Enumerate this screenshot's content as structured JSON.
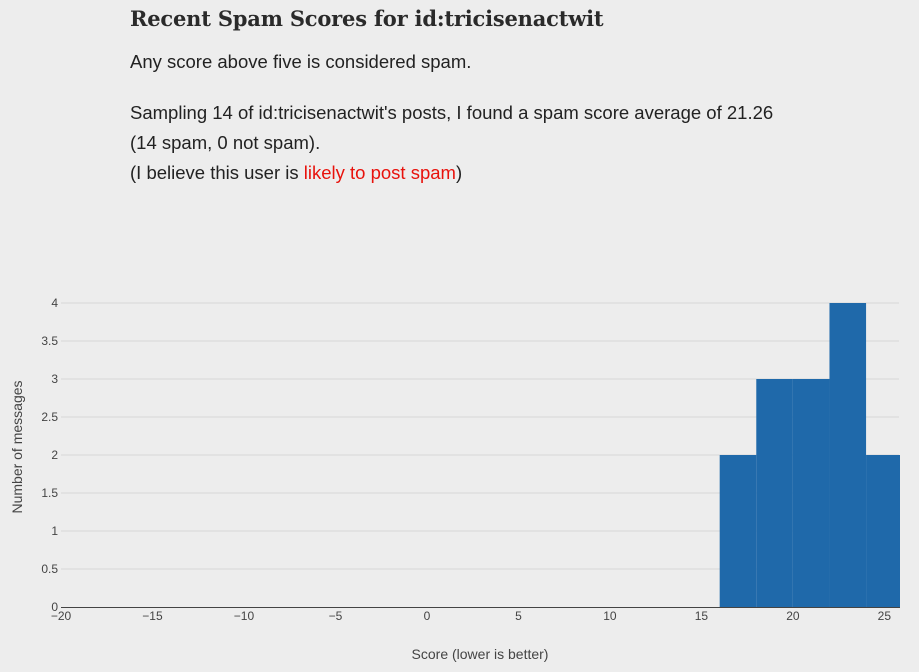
{
  "header": {
    "title": "Recent Spam Scores for id:tricisenactwit"
  },
  "intro": {
    "threshold_note": "Any score above five is considered spam."
  },
  "summary": {
    "line1": "Sampling 14 of id:tricisenactwit's posts, I found a spam score average of 21.26",
    "line2": "(14 spam, 0 not spam).",
    "verdict_prefix": "(I believe this user is ",
    "verdict": "likely to post spam",
    "verdict_suffix": ")"
  },
  "colors": {
    "bar": "#1f69aa",
    "verdict": "#e8120c",
    "grid": "#d6d6d6",
    "axis_text": "#444444"
  },
  "chart_data": {
    "type": "bar",
    "xlabel": "Score (lower is better)",
    "ylabel": "Number of messages",
    "xlim": [
      -20,
      25.8
    ],
    "ylim": [
      0,
      4
    ],
    "x_ticks": [
      -20,
      -15,
      -10,
      -5,
      0,
      5,
      10,
      15,
      20,
      25
    ],
    "x_tick_labels": [
      "−20",
      "−15",
      "−10",
      "−5",
      "0",
      "5",
      "10",
      "15",
      "20",
      "25"
    ],
    "y_ticks": [
      0,
      0.5,
      1,
      1.5,
      2,
      2.5,
      3,
      3.5,
      4
    ],
    "y_tick_labels": [
      "0",
      "0.5",
      "1",
      "1.5",
      "2",
      "2.5",
      "3",
      "3.5",
      "4"
    ],
    "grid": true,
    "bins": [
      {
        "x0": 16,
        "x1": 18,
        "count": 2
      },
      {
        "x0": 18,
        "x1": 20,
        "count": 3
      },
      {
        "x0": 20,
        "x1": 22,
        "count": 3
      },
      {
        "x0": 22,
        "x1": 24,
        "count": 4
      },
      {
        "x0": 24,
        "x1": 26,
        "count": 2
      }
    ]
  }
}
